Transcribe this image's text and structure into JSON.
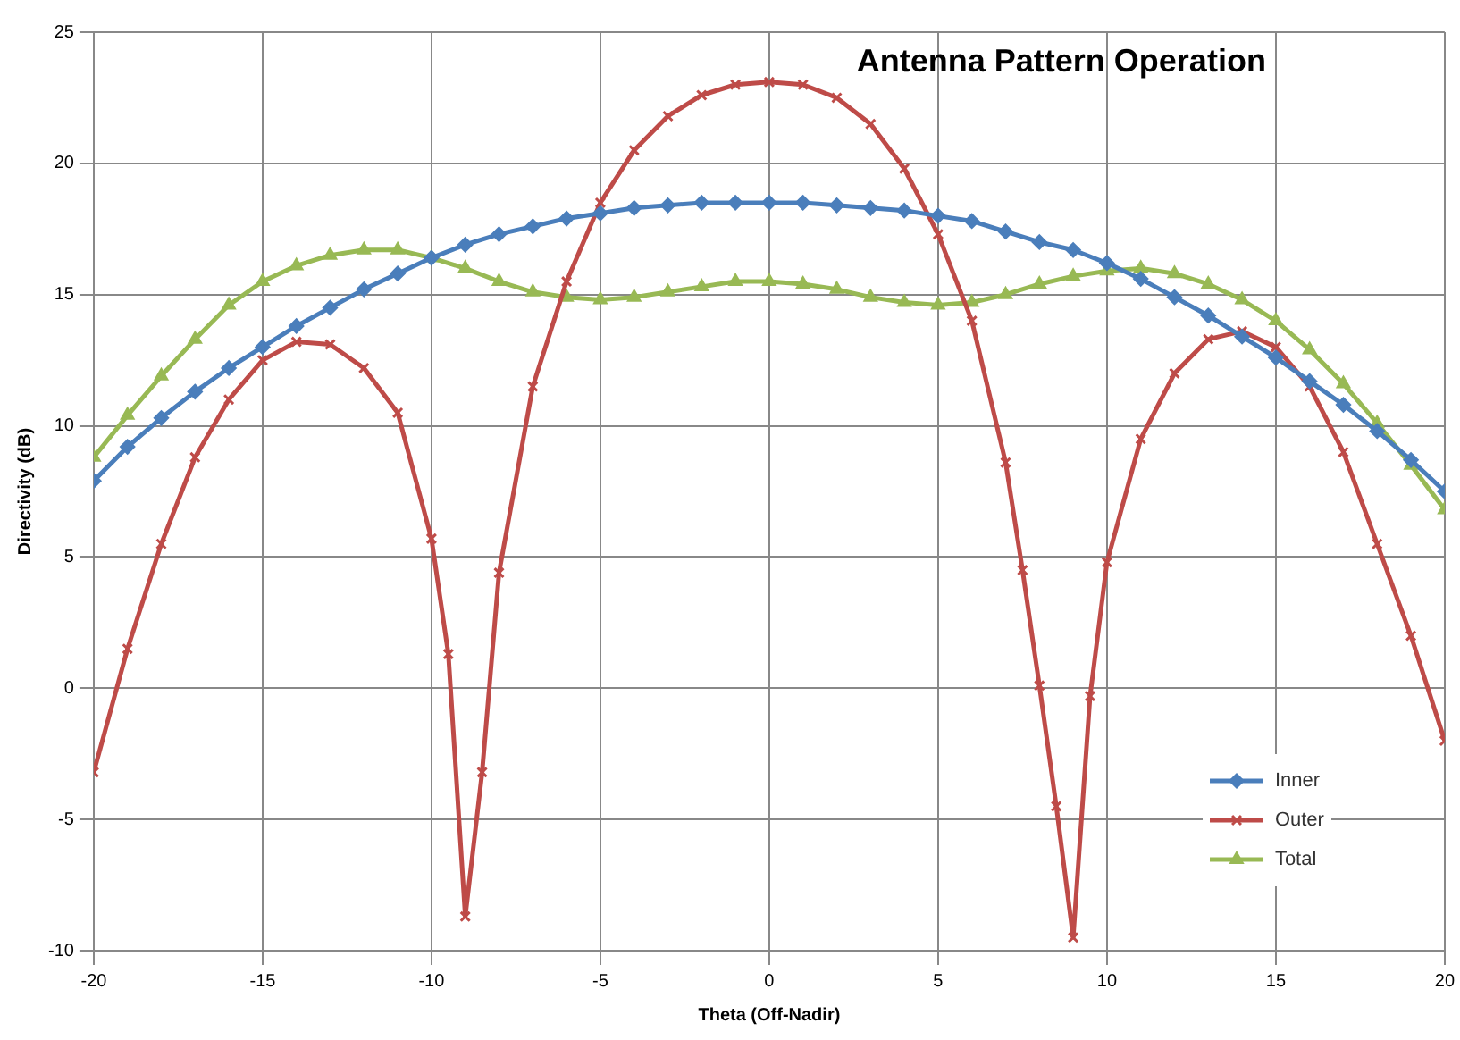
{
  "chart_data": {
    "type": "line",
    "title": "Antenna Pattern Operation",
    "xlabel": "Theta (Off-Nadir)",
    "ylabel": "Directivity (dB)",
    "xlim": [
      -20,
      20
    ],
    "xticks": [
      -20,
      -15,
      -10,
      -5,
      0,
      5,
      10,
      15,
      20
    ],
    "ylim": [
      -10,
      25
    ],
    "yticks": [
      -10,
      -5,
      0,
      5,
      10,
      15,
      20,
      25
    ],
    "grid": true,
    "legend": "bottom right",
    "series": [
      {
        "name": "Inner",
        "color": "#4a7ebb",
        "marker": "diamond",
        "x": [
          -20,
          -19,
          -18,
          -17,
          -16,
          -15,
          -14,
          -13,
          -12,
          -11,
          -10,
          -9,
          -8,
          -7,
          -6,
          -5,
          -4,
          -3,
          -2,
          -1,
          0,
          1,
          2,
          3,
          4,
          5,
          6,
          7,
          8,
          9,
          10,
          11,
          12,
          13,
          14,
          15,
          16,
          17,
          18,
          19,
          20
        ],
        "values": [
          7.9,
          9.2,
          10.3,
          11.3,
          12.2,
          13.0,
          13.8,
          14.5,
          15.2,
          15.8,
          16.4,
          16.9,
          17.3,
          17.6,
          17.9,
          18.1,
          18.3,
          18.4,
          18.5,
          18.5,
          18.5,
          18.5,
          18.4,
          18.3,
          18.2,
          18.0,
          17.8,
          17.4,
          17.0,
          16.7,
          16.2,
          15.6,
          14.9,
          14.2,
          13.4,
          12.6,
          11.7,
          10.8,
          9.8,
          8.7,
          7.5
        ]
      },
      {
        "name": "Outer",
        "color": "#be4b48",
        "marker": "cross",
        "x": [
          -20,
          -19,
          -18,
          -17,
          -16,
          -15,
          -14,
          -13,
          -12,
          -11,
          -10,
          -9.5,
          -9,
          -8.5,
          -8,
          -7,
          -6,
          -5,
          -4,
          -3,
          -2,
          -1,
          0,
          1,
          2,
          3,
          4,
          5,
          6,
          7,
          7.5,
          8,
          8.5,
          9,
          9.5,
          10,
          11,
          12,
          13,
          14,
          15,
          16,
          17,
          18,
          19,
          20
        ],
        "values": [
          -3.2,
          1.5,
          5.5,
          8.8,
          11.0,
          12.5,
          13.2,
          13.1,
          12.2,
          10.5,
          5.7,
          1.3,
          -8.7,
          -3.2,
          4.4,
          11.5,
          15.5,
          18.5,
          20.5,
          21.8,
          22.6,
          23.0,
          23.1,
          23.0,
          22.5,
          21.5,
          19.8,
          17.3,
          14.0,
          8.6,
          4.5,
          0.1,
          -4.5,
          -9.5,
          -0.3,
          4.8,
          9.5,
          12.0,
          13.3,
          13.6,
          13.0,
          11.5,
          9.0,
          5.5,
          2.0,
          -2.0
        ]
      },
      {
        "name": "Total",
        "color": "#98b954",
        "marker": "triangle",
        "x": [
          -20,
          -19,
          -18,
          -17,
          -16,
          -15,
          -14,
          -13,
          -12,
          -11,
          -10,
          -9,
          -8,
          -7,
          -6,
          -5,
          -4,
          -3,
          -2,
          -1,
          0,
          1,
          2,
          3,
          4,
          5,
          6,
          7,
          8,
          9,
          10,
          11,
          12,
          13,
          14,
          15,
          16,
          17,
          18,
          19,
          20
        ],
        "values": [
          8.8,
          10.4,
          11.9,
          13.3,
          14.6,
          15.5,
          16.1,
          16.5,
          16.7,
          16.7,
          16.4,
          16.0,
          15.5,
          15.1,
          14.9,
          14.8,
          14.9,
          15.1,
          15.3,
          15.5,
          15.5,
          15.4,
          15.2,
          14.9,
          14.7,
          14.6,
          14.7,
          15.0,
          15.4,
          15.7,
          15.9,
          16.0,
          15.8,
          15.4,
          14.8,
          14.0,
          12.9,
          11.6,
          10.1,
          8.5,
          6.8
        ]
      }
    ]
  }
}
